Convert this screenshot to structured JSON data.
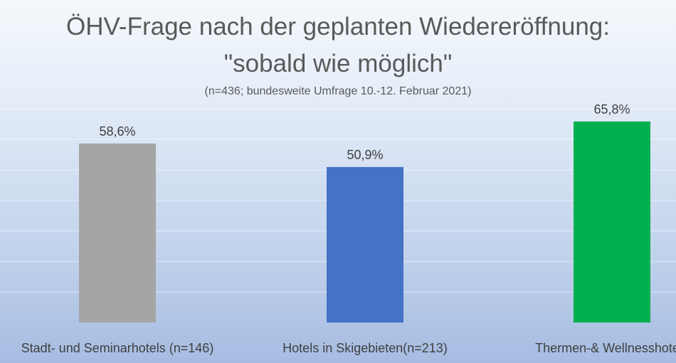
{
  "chart_data": {
    "type": "bar",
    "title_lines": [
      "ÖHV-Frage nach der geplanten Wiedereröffnung:",
      "\"sobald wie möglich\""
    ],
    "subtitle": "(n=436; bundesweite Umfrage 10.-12. Februar 2021)",
    "categories": [
      "Stadt- und Seminarhotels (n=146)",
      "Hotels in Skigebieten(n=213)",
      "Thermen-& Wellnesshotels"
    ],
    "values": [
      58.6,
      50.9,
      65.8
    ],
    "value_labels": [
      "58,6%",
      "50,9%",
      "65,8%"
    ],
    "bar_colors": [
      "#a5a5a5",
      "#4472c4",
      "#00b050"
    ],
    "ylim": [
      0,
      70
    ],
    "grid": true,
    "legend": "none"
  }
}
